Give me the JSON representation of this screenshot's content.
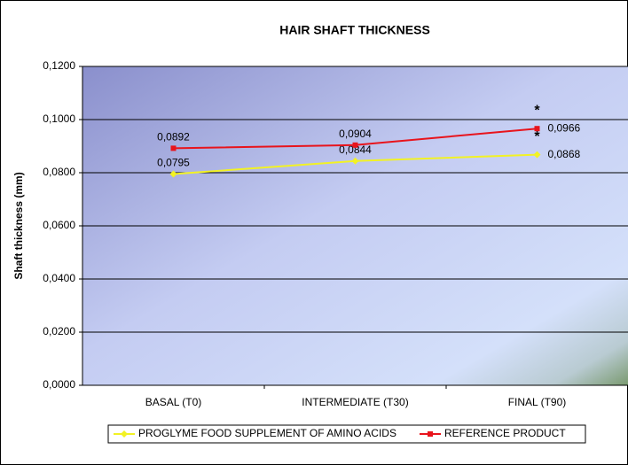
{
  "chart_data": {
    "type": "line",
    "title": "HAIR SHAFT THICKNESS",
    "y_label": "Shaft thickness (mm)",
    "categories": [
      "BASAL (T0)",
      "INTERMEDIATE (T30)",
      "FINAL (T90)"
    ],
    "series": [
      {
        "name": "PROGLYME FOOD SUPPLEMENT OF AMINO ACIDS",
        "color": "#f2f224",
        "marker": "diamond",
        "values": [
          0.0795,
          0.0844,
          0.0868
        ],
        "value_labels": [
          "0,0795",
          "0,0844",
          "0,0868"
        ]
      },
      {
        "name": "REFERENCE PRODUCT",
        "color": "#e8141c",
        "marker": "square",
        "values": [
          0.0892,
          0.0904,
          0.0966
        ],
        "value_labels": [
          "0,0892",
          "0,0904",
          "0,0966"
        ]
      }
    ],
    "annotations": [
      "*",
      "*"
    ],
    "ylim": [
      0,
      0.12
    ],
    "yticks": [
      {
        "value": 0,
        "label": "0,0000"
      },
      {
        "value": 0.02,
        "label": "0,0200"
      },
      {
        "value": 0.04,
        "label": "0,0400"
      },
      {
        "value": 0.06,
        "label": "0,0600"
      },
      {
        "value": 0.08,
        "label": "0,0800"
      },
      {
        "value": 0.1,
        "label": "0,1000"
      },
      {
        "value": 0.12,
        "label": "0,1200"
      }
    ],
    "grid": true,
    "legend": "bottom"
  }
}
